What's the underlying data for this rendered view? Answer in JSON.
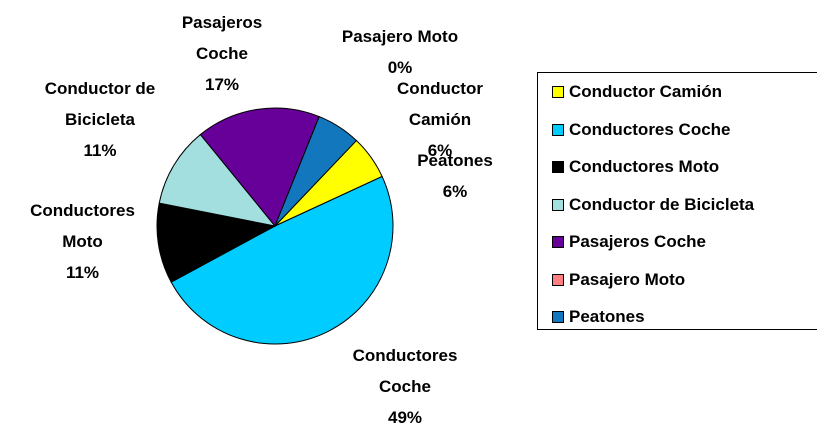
{
  "chart_data": {
    "type": "pie",
    "categories": [
      "Conductor Camión",
      "Conductores Coche",
      "Conductores Moto",
      "Conductor de Bicicleta",
      "Pasajeros Coche",
      "Pasajero Moto",
      "Peatones"
    ],
    "values": [
      6,
      49,
      11,
      11,
      17,
      0,
      6
    ],
    "value_labels": [
      "6%",
      "49%",
      "11%",
      "11%",
      "17%",
      "0%",
      "6%"
    ],
    "colors": [
      "#ffff00",
      "#00ccff",
      "#000000",
      "#a3dfdf",
      "#660099",
      "#ff8080",
      "#1277bd"
    ],
    "legend": "right"
  }
}
